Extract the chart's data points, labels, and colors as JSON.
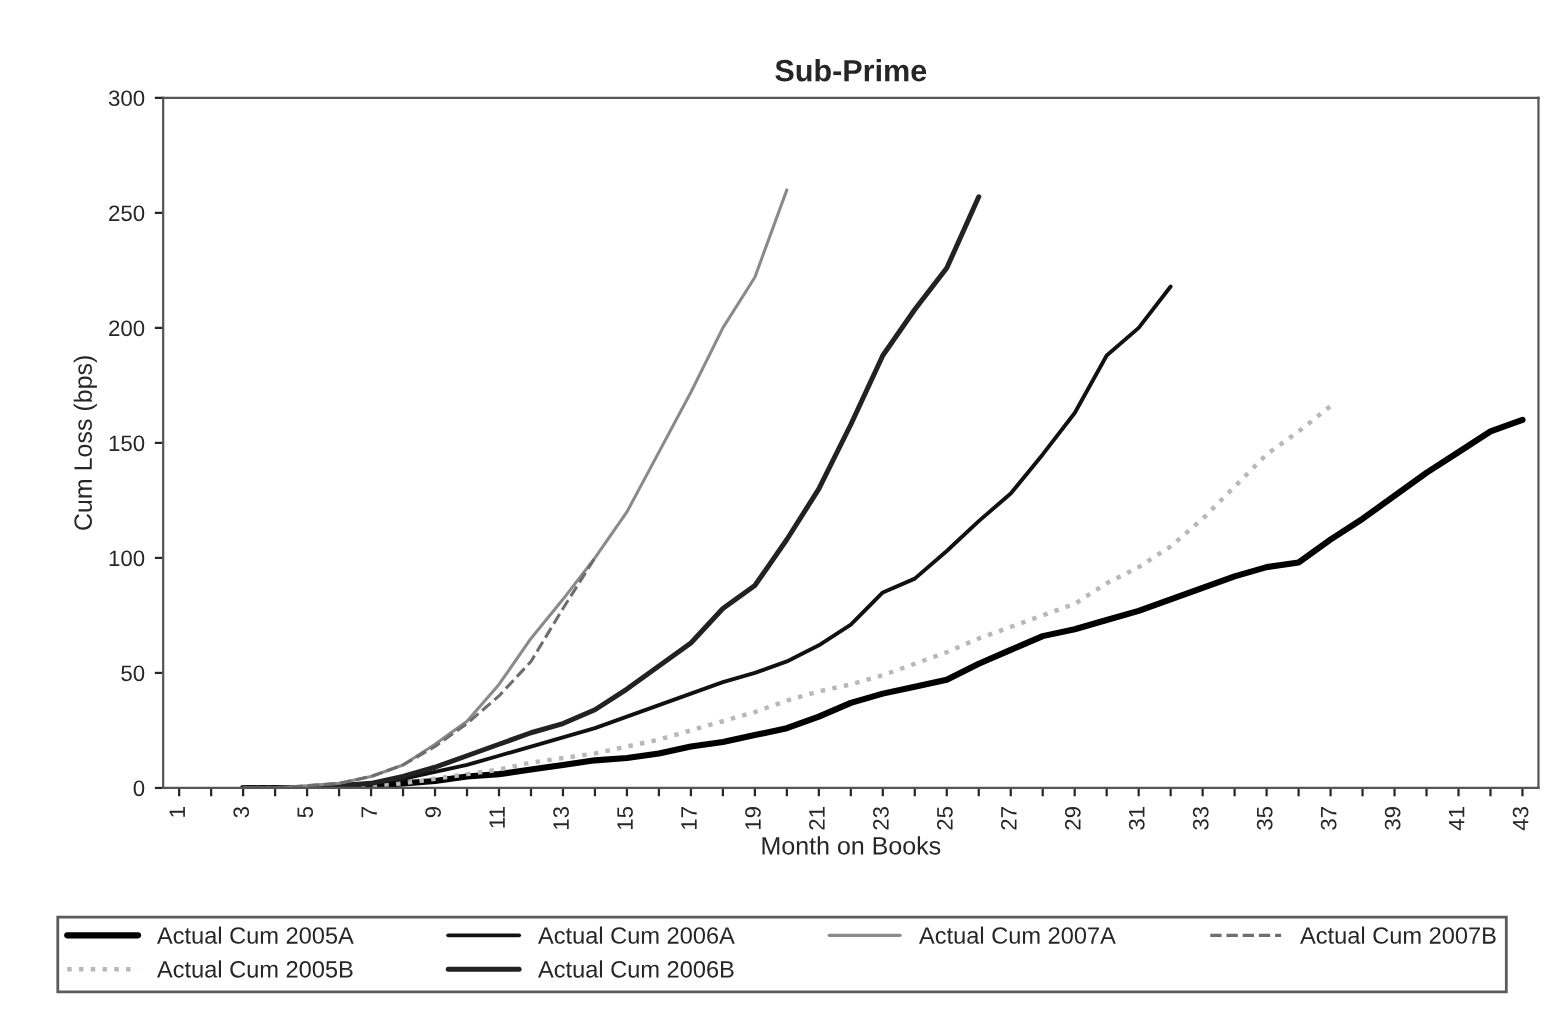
{
  "chart_data": {
    "type": "line",
    "title": "Sub-Prime",
    "xlabel": "Month on Books",
    "ylabel": "Cum Loss (bps)",
    "categories": [
      "1",
      null,
      "3",
      null,
      "5",
      null,
      "7",
      null,
      "9",
      null,
      "11",
      null,
      "13",
      null,
      "15",
      null,
      "17",
      null,
      "19",
      null,
      "21",
      null,
      "23",
      null,
      "25",
      null,
      "27",
      null,
      "29",
      null,
      "31",
      null,
      "33",
      null,
      "35",
      null,
      "37",
      null,
      "39",
      null,
      "41",
      null,
      "43"
    ],
    "ylim": [
      0,
      300
    ],
    "yticks": [
      0,
      50,
      100,
      150,
      200,
      250,
      300
    ],
    "grid": false,
    "legend": "bottom",
    "marker": "none",
    "series": [
      {
        "name": "Actual Cum 2005A",
        "color": "#000000",
        "line_style": "solid",
        "values": [
          null,
          null,
          0,
          0,
          0,
          1,
          1,
          2,
          3,
          5,
          6,
          8,
          10,
          12,
          13,
          15,
          18,
          20,
          23,
          26,
          31,
          37,
          41,
          44,
          47,
          54,
          60,
          66,
          69,
          73,
          77,
          82,
          87,
          92,
          96,
          98,
          108,
          117,
          127,
          137,
          146,
          155,
          160
        ]
      },
      {
        "name": "Actual Cum 2005B",
        "color": "#b8b8b8",
        "line_style": "dotted",
        "values": [
          null,
          null,
          0,
          0,
          0,
          1,
          1,
          2,
          4,
          6,
          8,
          11,
          13,
          15,
          18,
          21,
          25,
          29,
          33,
          38,
          42,
          45,
          49,
          54,
          59,
          65,
          70,
          75,
          80,
          89,
          96,
          105,
          117,
          131,
          145,
          155,
          166,
          null,
          null,
          null,
          null,
          null,
          null
        ]
      },
      {
        "name": "Actual Cum 2006A",
        "color": "#111111",
        "line_style": "solid",
        "values": [
          null,
          null,
          0,
          0,
          0,
          1,
          2,
          4,
          7,
          10,
          14,
          18,
          22,
          26,
          31,
          36,
          41,
          46,
          50,
          55,
          62,
          71,
          85,
          91,
          103,
          116,
          128,
          145,
          163,
          188,
          200,
          218,
          null,
          null,
          null,
          null,
          null,
          null,
          null,
          null,
          null,
          null,
          null
        ]
      },
      {
        "name": "Actual Cum 2006B",
        "color": "#222222",
        "line_style": "solid",
        "values": [
          null,
          null,
          0,
          0,
          0,
          1,
          2,
          5,
          9,
          14,
          19,
          24,
          28,
          34,
          43,
          53,
          63,
          78,
          88,
          108,
          130,
          158,
          188,
          208,
          226,
          257,
          null,
          null,
          null,
          null,
          null,
          null,
          null,
          null,
          null,
          null,
          null,
          null,
          null,
          null,
          null,
          null,
          null
        ]
      },
      {
        "name": "Actual Cum 2007A",
        "color": "#8a8a8a",
        "line_style": "solid",
        "values": [
          null,
          null,
          0,
          0,
          1,
          2,
          5,
          10,
          19,
          29,
          45,
          65,
          82,
          100,
          120,
          146,
          172,
          200,
          222,
          260,
          null,
          null,
          null,
          null,
          null,
          null,
          null,
          null,
          null,
          null,
          null,
          null,
          null,
          null,
          null,
          null,
          null,
          null,
          null,
          null,
          null,
          null,
          null
        ]
      },
      {
        "name": "Actual Cum 2007B",
        "color": "#6e6e6e",
        "line_style": "dashed",
        "values": [
          null,
          null,
          0,
          0,
          1,
          2,
          5,
          10,
          18,
          28,
          40,
          55,
          78,
          100,
          null,
          null,
          null,
          null,
          null,
          null,
          null,
          null,
          null,
          null,
          null,
          null,
          null,
          null,
          null,
          null,
          null,
          null,
          null,
          null,
          null,
          null,
          null,
          null,
          null,
          null,
          null,
          null,
          null
        ]
      }
    ]
  }
}
